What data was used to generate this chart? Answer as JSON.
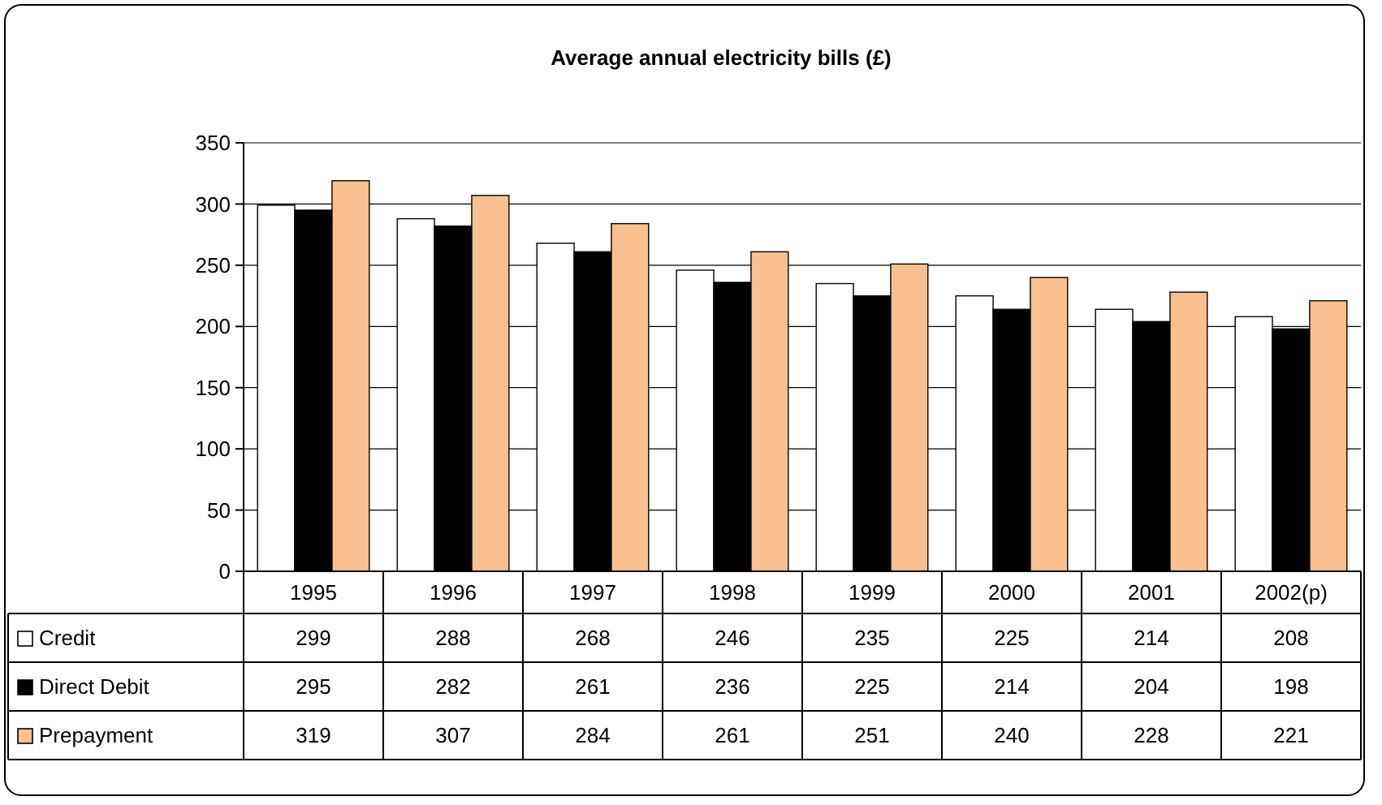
{
  "chart_data": {
    "type": "bar",
    "title": "Average annual electricity bills (£)",
    "categories": [
      "1995",
      "1996",
      "1997",
      "1998",
      "1999",
      "2000",
      "2001",
      "2002(p)"
    ],
    "series": [
      {
        "name": "Credit",
        "color": "#ffffff",
        "values": [
          299,
          288,
          268,
          246,
          235,
          225,
          214,
          208
        ]
      },
      {
        "name": "Direct Debit",
        "color": "#000000",
        "values": [
          295,
          282,
          261,
          236,
          225,
          214,
          204,
          198
        ]
      },
      {
        "name": "Prepayment",
        "color": "#f9c08f",
        "values": [
          319,
          307,
          284,
          261,
          251,
          240,
          228,
          221
        ]
      }
    ],
    "ylim": [
      0,
      350
    ],
    "yticks": [
      0,
      50,
      100,
      150,
      200,
      250,
      300,
      350
    ],
    "grid": "y",
    "legend": "bottom",
    "data_labels": true
  }
}
